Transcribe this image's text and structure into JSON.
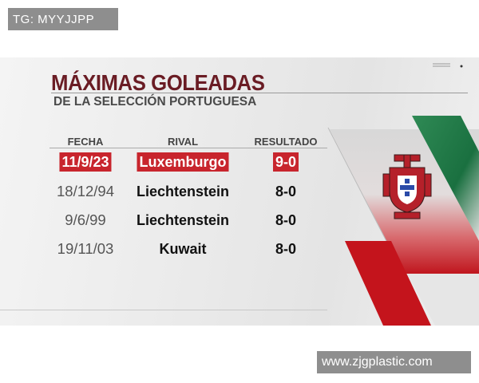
{
  "watermarks": {
    "top_left": "TG: MYYJJPP",
    "bottom_right": "www.zjgplastic.com"
  },
  "graphic": {
    "title": "MÁXIMAS GOLEADAS",
    "subtitle": "DE LA SELECCIÓN PORTUGUESA",
    "columns": [
      "FECHA",
      "RIVAL",
      "RESULTADO"
    ],
    "rows": [
      {
        "fecha": "11/9/23",
        "rival": "Luxemburgo",
        "resultado": "9-0",
        "highlighted": true
      },
      {
        "fecha": "18/12/94",
        "rival": "Liechtenstein",
        "resultado": "8-0",
        "highlighted": false
      },
      {
        "fecha": "9/6/99",
        "rival": "Liechtenstein",
        "resultado": "8-0",
        "highlighted": false
      },
      {
        "fecha": "19/11/03",
        "rival": "Kuwait",
        "resultado": "8-0",
        "highlighted": false
      }
    ],
    "colors": {
      "title": "#6a1c24",
      "highlight": "#c8252d",
      "green": "#1f7a45",
      "red": "#c01a22"
    },
    "logo": "portugal-fpf-crest-icon"
  }
}
